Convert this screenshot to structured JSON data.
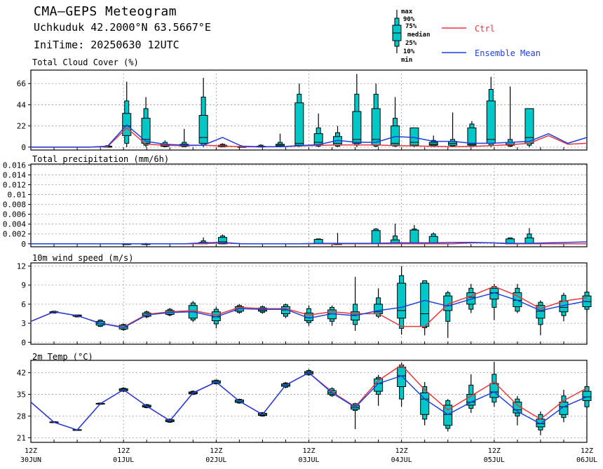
{
  "header": {
    "title": "CMA—GEPS Meteogram",
    "station": "Uchkuduk 42.2000°N 63.5667°E",
    "init_time": "IniTime: 20250630 12UTC"
  },
  "legend": {
    "box_labels": [
      "max",
      "90%",
      "75%",
      "median",
      "25%",
      "10%",
      "min"
    ],
    "ctrl_label": "Ctrl",
    "mean_label": "Ensemble Mean",
    "ctrl_color": "#e8383d",
    "mean_color": "#1f3fe0",
    "box_fill": "#00c8c8"
  },
  "x_axis": {
    "labels": [
      {
        "top": "12Z",
        "bottom": "30JUN"
      },
      {
        "top": "12Z",
        "bottom": "01JUL"
      },
      {
        "top": "12Z",
        "bottom": "02JUL"
      },
      {
        "top": "12Z",
        "bottom": "03JUL"
      },
      {
        "top": "12Z",
        "bottom": "04JUL"
      },
      {
        "top": "12Z",
        "bottom": "05JUL"
      },
      {
        "top": "12Z",
        "bottom": "06JUL"
      }
    ]
  },
  "chart_data": [
    {
      "type": "box",
      "title": "Total Cloud Cover (%)",
      "ylim": [
        -3,
        80
      ],
      "yticks": [
        0,
        22,
        44,
        66
      ],
      "ytick_labels": [
        "0",
        "22",
        "44",
        "66"
      ],
      "ctrl": [
        0,
        0,
        0,
        0,
        0.5,
        20,
        3,
        2,
        1.5,
        2,
        1.2,
        0.4,
        0.3,
        0.5,
        1.2,
        1.8,
        2.3,
        2.3,
        2.3,
        1.5,
        1.3,
        0.8,
        0.5,
        0.8,
        1.5,
        2.5,
        4,
        12,
        3,
        4
      ],
      "mean": [
        0,
        0,
        0,
        0,
        1,
        23,
        6,
        3,
        2,
        2,
        10,
        1,
        0.5,
        0.5,
        1.5,
        2.5,
        7,
        5,
        5,
        11,
        10,
        6,
        6,
        4,
        4,
        5,
        6,
        14,
        4,
        10
      ],
      "boxes": [
        null,
        null,
        null,
        null,
        [
          0,
          0,
          0,
          0.5,
          1,
          1.5,
          2
        ],
        [
          0,
          4,
          12,
          22,
          35,
          48,
          68
        ],
        [
          0,
          2,
          4,
          8,
          30,
          40,
          52
        ],
        [
          0,
          0.5,
          1,
          2,
          3,
          5,
          7
        ],
        [
          0,
          0.5,
          1,
          2,
          3,
          5,
          19
        ],
        [
          0,
          2,
          4,
          10,
          33,
          52,
          72
        ],
        [
          0,
          0.3,
          0.5,
          1,
          2,
          3,
          4
        ],
        [
          0,
          0,
          0,
          0.2,
          0.5,
          1,
          2
        ],
        [
          0,
          0,
          0.2,
          0.5,
          1,
          2,
          3
        ],
        [
          0,
          0.5,
          1,
          2,
          3,
          5,
          14
        ],
        [
          0,
          1,
          2,
          4,
          46,
          55,
          66
        ],
        [
          0,
          1,
          2,
          5,
          14,
          20,
          35
        ],
        [
          0,
          1,
          2,
          4,
          11,
          15,
          22
        ],
        [
          0,
          2,
          4,
          8,
          37,
          55,
          76
        ],
        [
          0,
          1,
          2,
          8,
          40,
          55,
          66
        ],
        [
          0,
          1,
          2,
          4,
          22,
          30,
          52
        ],
        [
          0,
          1,
          2,
          5,
          20,
          20,
          20
        ],
        [
          0,
          1,
          2,
          3,
          5,
          7,
          12
        ],
        [
          0,
          1,
          2,
          4,
          6,
          8,
          36
        ],
        [
          0,
          1,
          2,
          3,
          20,
          24,
          27
        ],
        [
          0,
          2,
          4,
          8,
          48,
          60,
          73
        ],
        [
          0,
          1,
          2,
          3,
          5,
          8,
          63
        ],
        [
          0,
          2,
          4,
          10,
          40,
          40,
          40
        ]
      ]
    },
    {
      "type": "box",
      "title": "Total precipitation (mm/6h)",
      "ylim": [
        -0.0006,
        0.0162
      ],
      "yticks": [
        0,
        0.002,
        0.004,
        0.006,
        0.008,
        0.01,
        0.012,
        0.014,
        0.016
      ],
      "ytick_labels": [
        "0",
        "0.002",
        "0.004",
        "0.006",
        "0.008",
        "0.01",
        "0.012",
        "0.014",
        "0.016"
      ],
      "ctrl": [
        0,
        0,
        0,
        0,
        0,
        0,
        0,
        0,
        0,
        0,
        0.0002,
        0,
        0,
        0,
        0,
        0,
        0,
        0,
        0,
        0,
        0,
        0,
        0,
        0.0002,
        0.0002,
        0,
        0,
        0,
        0,
        0
      ],
      "mean": [
        0,
        0,
        0,
        0,
        0,
        0,
        0,
        0,
        0,
        0.0002,
        0.0003,
        0,
        0,
        0,
        0,
        0.0001,
        0.0001,
        0.0001,
        0.0001,
        0.0002,
        0.0002,
        0.0002,
        0.0003,
        0.0003,
        0.0002,
        0.0001,
        0.0001,
        0.0002,
        0.0003,
        0.0004
      ],
      "boxes": [
        null,
        null,
        null,
        null,
        null,
        [
          0,
          0,
          0,
          0,
          0,
          0,
          0
        ],
        [
          0,
          0,
          0,
          0,
          0,
          0,
          0.0002
        ],
        null,
        null,
        [
          0,
          0,
          0,
          0,
          0.0003,
          0.0006,
          0.0013
        ],
        [
          0,
          0,
          0,
          0.0004,
          0.0013,
          0.0016,
          0.0019
        ],
        null,
        null,
        null,
        null,
        [
          0,
          0,
          0,
          0,
          0.0009,
          0.001,
          0.001
        ],
        [
          0,
          0,
          0,
          0,
          0,
          0,
          0.0022
        ],
        null,
        [
          0,
          0,
          0,
          0,
          0.0027,
          0.003,
          0.0032
        ],
        [
          0,
          0,
          0,
          0,
          0.0008,
          0.0016,
          0.0041
        ],
        [
          0,
          0,
          0,
          0,
          0.0028,
          0.003,
          0.0038
        ],
        [
          0,
          0,
          0,
          0,
          0.0015,
          0.002,
          0.0023
        ],
        null,
        null,
        null,
        [
          0,
          0,
          0,
          0,
          0.001,
          0.0012,
          0.0013
        ],
        [
          0,
          0,
          0,
          0,
          0.0012,
          0.002,
          0.0032
        ],
        null
      ]
    },
    {
      "type": "box",
      "title": "10m wind speed (m/s)",
      "ylim": [
        -0.3,
        12.5
      ],
      "yticks": [
        0,
        3,
        6,
        9,
        12
      ],
      "ytick_labels": [
        "0",
        "3",
        "6",
        "9",
        "12"
      ],
      "ctrl": [
        3.3,
        4.8,
        4.2,
        3,
        2.4,
        4.4,
        4.8,
        5,
        4.3,
        5.5,
        5.3,
        5.3,
        4.3,
        4.8,
        4.5,
        4.5,
        2.5,
        2.5,
        6,
        7.3,
        8.8,
        7.3,
        5.3,
        6.5,
        7
      ],
      "mean": [
        3.3,
        4.8,
        4.2,
        3,
        2.3,
        4.3,
        4.7,
        4.8,
        4,
        5.3,
        5.2,
        5.2,
        3.8,
        4.5,
        4.2,
        5,
        5.5,
        6.6,
        5.7,
        6.8,
        7.8,
        6.6,
        5,
        5.8,
        6.5
      ],
      "boxes": [
        null,
        [
          4.6,
          4.6,
          4.7,
          4.8,
          4.8,
          4.9,
          4.9
        ],
        [
          4,
          4,
          4.1,
          4.2,
          4.3,
          4.3,
          4.3
        ],
        [
          2.4,
          2.5,
          2.7,
          3,
          3.3,
          3.5,
          3.6
        ],
        [
          1.8,
          2,
          2.1,
          2.4,
          2.7,
          2.8,
          2.9
        ],
        [
          3.8,
          4,
          4.1,
          4.3,
          4.6,
          4.8,
          5
        ],
        [
          4.1,
          4.3,
          4.4,
          4.7,
          5,
          5.2,
          5.4
        ],
        [
          3.2,
          3.5,
          3.8,
          4.8,
          5.8,
          6.2,
          6.5
        ],
        [
          2.2,
          2.9,
          3.4,
          4,
          4.8,
          5.2,
          5.6
        ],
        [
          4.5,
          4.7,
          4.9,
          5.3,
          5.6,
          5.8,
          6
        ],
        [
          4.5,
          4.7,
          4.9,
          5.1,
          5.4,
          5.6,
          5.8
        ],
        [
          3.8,
          4.1,
          4.5,
          5.1,
          5.6,
          5.9,
          6.1
        ],
        [
          2.6,
          3.1,
          3.4,
          3.9,
          4.6,
          5.3,
          5.8
        ],
        [
          2.6,
          3.3,
          3.7,
          4.5,
          5.1,
          5.5,
          5.8
        ],
        [
          1.8,
          2.8,
          3.5,
          4.3,
          4.8,
          6,
          10.3
        ],
        [
          3.8,
          4.1,
          4.5,
          4.8,
          6,
          7,
          8.5
        ],
        [
          1.2,
          2.2,
          3.8,
          5,
          9.3,
          10.5,
          12
        ],
        [
          1.1,
          2.3,
          2.5,
          4.5,
          9.3,
          9.7,
          9.7
        ],
        [
          0.7,
          3.3,
          5,
          5.8,
          7.3,
          7.8,
          8.1
        ],
        [
          4.6,
          5.2,
          6,
          7.1,
          7.8,
          8.5,
          9.2
        ],
        [
          3.5,
          5.5,
          6.8,
          7.8,
          8.5,
          8.8,
          9.2
        ],
        [
          4.6,
          4.9,
          5.6,
          6.6,
          7.8,
          8.5,
          9.2
        ],
        [
          1.1,
          2.8,
          3.8,
          4.9,
          5.8,
          6.3,
          6.6
        ],
        [
          3.3,
          4.2,
          4.8,
          5.5,
          6.5,
          7.4,
          7.8
        ],
        [
          4.7,
          5.2,
          5.6,
          6.4,
          7.3,
          7.9,
          8.1
        ]
      ]
    },
    {
      "type": "box",
      "title": "2m Temp (°C)",
      "ylim": [
        19.5,
        46
      ],
      "yticks": [
        21,
        28,
        35,
        42
      ],
      "ytick_labels": [
        "21",
        "28",
        "35",
        "42"
      ],
      "ctrl": [
        32.5,
        26,
        23.5,
        32,
        36.5,
        31.2,
        26.5,
        35.5,
        39,
        32.8,
        28.5,
        38,
        42,
        35.8,
        31,
        39.5,
        44.5,
        36.5,
        30,
        34.5,
        39,
        31.5,
        27,
        33,
        37
      ],
      "mean": [
        32.5,
        26,
        23.5,
        32,
        36.5,
        31.2,
        26.5,
        35.5,
        39,
        32.8,
        28.5,
        38,
        42,
        35.5,
        30.8,
        38.5,
        41,
        33.5,
        28.5,
        32.5,
        35.8,
        29.5,
        25.5,
        31,
        34.2
      ],
      "boxes": [
        null,
        [
          25.8,
          25.9,
          26,
          26,
          26.1,
          26.2,
          26.2
        ],
        [
          23.3,
          23.4,
          23.4,
          23.5,
          23.6,
          23.6,
          23.7
        ],
        [
          31.6,
          31.8,
          31.9,
          32,
          32.1,
          32.2,
          32.4
        ],
        [
          35.8,
          36,
          36.2,
          36.5,
          36.8,
          37,
          37.3
        ],
        [
          30.5,
          30.7,
          30.9,
          31.2,
          31.5,
          31.7,
          31.9
        ],
        [
          25.8,
          26,
          26.2,
          26.5,
          26.8,
          27,
          27.2
        ],
        [
          34.8,
          35,
          35.2,
          35.5,
          35.8,
          36,
          36.3
        ],
        [
          38.2,
          38.4,
          38.6,
          39,
          39.4,
          39.6,
          39.8
        ],
        [
          32,
          32.2,
          32.4,
          32.8,
          33.2,
          33.4,
          33.6
        ],
        [
          27.8,
          28,
          28.2,
          28.5,
          28.9,
          29.1,
          29.3
        ],
        [
          37,
          37.3,
          37.6,
          38,
          38.4,
          38.7,
          39
        ],
        [
          41,
          41.3,
          41.6,
          42,
          42.4,
          42.7,
          43.2
        ],
        [
          34.2,
          34.6,
          35,
          35.5,
          36.2,
          36.8,
          37.3
        ],
        [
          23.8,
          29.8,
          30.2,
          30.8,
          31.5,
          32,
          32.3
        ],
        [
          31.3,
          35,
          36,
          38.5,
          40,
          40.5,
          41.3
        ],
        [
          31,
          33.5,
          37.5,
          41,
          43.8,
          44.5,
          45.3
        ],
        [
          25,
          27,
          28.5,
          33.5,
          35.5,
          37.5,
          39
        ],
        [
          23,
          24,
          25,
          28.5,
          31.5,
          33,
          33.5
        ],
        [
          29,
          30.5,
          31.5,
          32.5,
          35,
          38,
          41.5
        ],
        [
          31,
          32.5,
          34,
          35.8,
          38.5,
          41.5,
          45.5
        ],
        [
          25,
          28,
          29,
          30,
          32.5,
          33.5,
          34.5
        ],
        [
          21.8,
          23.5,
          24.5,
          25.5,
          27,
          28.5,
          29.5
        ],
        [
          26,
          27.5,
          28.5,
          31,
          32.5,
          34.5,
          36.5
        ],
        [
          30.3,
          31,
          33,
          34.2,
          36,
          37.5,
          38.5
        ]
      ]
    }
  ]
}
